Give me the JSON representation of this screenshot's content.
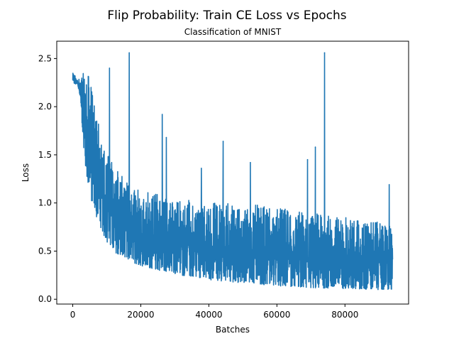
{
  "chart_data": {
    "type": "line",
    "title": "Flip Probability: Train CE Loss vs Epochs",
    "subtitle": "Classification of MNIST",
    "xlabel": "Batches",
    "ylabel": "Loss",
    "xlim": [
      -4700,
      98700
    ],
    "ylim": [
      -0.05,
      2.68
    ],
    "xticks": [
      0,
      20000,
      40000,
      60000,
      80000
    ],
    "xtick_labels": [
      "0",
      "20000",
      "40000",
      "60000",
      "80000"
    ],
    "yticks": [
      0.0,
      0.5,
      1.0,
      1.5,
      2.0,
      2.5
    ],
    "ytick_labels": [
      "0.0",
      "0.5",
      "1.0",
      "1.5",
      "2.0",
      "2.5"
    ],
    "grid": false,
    "color": "#1f77b4",
    "series": [
      {
        "x_start": 0,
        "x_end": 94000,
        "envelope": {
          "x": [
            0,
            1500,
            2500,
            3000,
            4000,
            5000,
            6000,
            8000,
            10000,
            12000,
            15000,
            20000,
            30000,
            40000,
            50000,
            60000,
            70000,
            80000,
            90000,
            94000
          ],
          "upper": [
            2.35,
            2.3,
            2.3,
            2.35,
            2.3,
            2.35,
            2.1,
            1.75,
            1.55,
            1.4,
            1.25,
            1.15,
            1.05,
            1.0,
            1.0,
            0.95,
            0.9,
            0.85,
            0.8,
            0.75
          ],
          "lower": [
            2.25,
            2.22,
            2.0,
            1.6,
            1.3,
            1.1,
            0.95,
            0.75,
            0.6,
            0.5,
            0.42,
            0.35,
            0.26,
            0.2,
            0.17,
            0.14,
            0.12,
            0.11,
            0.1,
            0.1
          ]
        },
        "spikes": [
          {
            "x": 10800,
            "y": 2.4
          },
          {
            "x": 16600,
            "y": 2.56
          },
          {
            "x": 26300,
            "y": 1.92
          },
          {
            "x": 27500,
            "y": 1.68
          },
          {
            "x": 37800,
            "y": 1.36
          },
          {
            "x": 44200,
            "y": 1.64
          },
          {
            "x": 52200,
            "y": 1.42
          },
          {
            "x": 69000,
            "y": 1.45
          },
          {
            "x": 71300,
            "y": 1.58
          },
          {
            "x": 74000,
            "y": 2.56
          },
          {
            "x": 93000,
            "y": 1.19
          }
        ],
        "min_value": 0.06
      }
    ]
  }
}
